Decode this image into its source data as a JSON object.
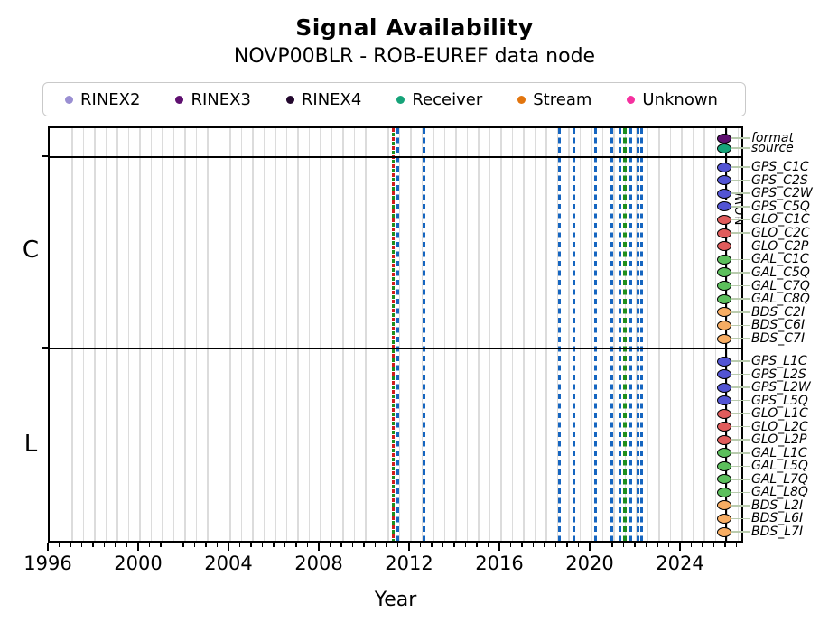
{
  "header": {
    "title": "Signal Availability",
    "subtitle": "NOVP00BLR - ROB-EUREF data node"
  },
  "legend": {
    "items": [
      {
        "label": "RINEX2",
        "color": "#9a8fd2"
      },
      {
        "label": "RINEX3",
        "color": "#5f1070"
      },
      {
        "label": "RINEX4",
        "color": "#23082e"
      },
      {
        "label": "Receiver",
        "color": "#16a379"
      },
      {
        "label": "Stream",
        "color": "#e2750e"
      },
      {
        "label": "Unknown",
        "color": "#f5309f"
      }
    ]
  },
  "axis": {
    "xlabel": "Year",
    "now_label": "NOW"
  },
  "section_labels": {
    "c": "C",
    "l": "L"
  },
  "chart_data": {
    "type": "scatter",
    "title": "Signal Availability",
    "subtitle": "NOVP00BLR - ROB-EUREF data node",
    "xlabel": "Year",
    "xlim": [
      1996,
      2026.8
    ],
    "x_major_ticks": [
      1996,
      2000,
      2004,
      2008,
      2012,
      2016,
      2020,
      2024
    ],
    "x_minor_tick_step": 0.5,
    "grid": "vertical gridlines every 0.5 year",
    "legend_position": "top",
    "now_year": 2025.96,
    "marker_colors": {
      "GPS": "#5254d3",
      "GLO": "#e05c5c",
      "GAL": "#5cbf5c",
      "BDS": "#f7ad63",
      "RINEX3": "#5f1070",
      "Receiver": "#16a379"
    },
    "event_colors": {
      "blue": "#1565c0",
      "green": "#1e8e1e",
      "red": "#d01c1c"
    },
    "event_lines": [
      {
        "year": 2011.2,
        "color": "red-green",
        "style": "dashed"
      },
      {
        "year": 2011.4,
        "color": "blue",
        "style": "dashed"
      },
      {
        "year": 2012.56,
        "color": "blue",
        "style": "dashed"
      },
      {
        "year": 2018.56,
        "color": "blue",
        "style": "dashed"
      },
      {
        "year": 2019.2,
        "color": "blue",
        "style": "dashed"
      },
      {
        "year": 2020.16,
        "color": "blue",
        "style": "dashed"
      },
      {
        "year": 2020.88,
        "color": "blue",
        "style": "dashed"
      },
      {
        "year": 2021.24,
        "color": "blue",
        "style": "dashed"
      },
      {
        "year": 2021.48,
        "color": "green",
        "style": "dashed",
        "thick": true
      },
      {
        "year": 2021.72,
        "color": "blue",
        "style": "dashed"
      },
      {
        "year": 2022.04,
        "color": "blue",
        "style": "dashed"
      },
      {
        "year": 2022.2,
        "color": "blue",
        "style": "dashed"
      }
    ],
    "sections": [
      {
        "name": "meta",
        "label": "",
        "rows": [
          {
            "label": "format",
            "category": "RINEX3",
            "marker_year": 2025.96
          },
          {
            "label": "source",
            "category": "Receiver",
            "marker_year": 2025.96
          }
        ]
      },
      {
        "name": "C",
        "label": "C",
        "rows": [
          {
            "label": "GPS_C1C",
            "category": "GPS",
            "marker_year": 2025.96
          },
          {
            "label": "GPS_C2S",
            "category": "GPS",
            "marker_year": 2025.96
          },
          {
            "label": "GPS_C2W",
            "category": "GPS",
            "marker_year": 2025.96
          },
          {
            "label": "GPS_C5Q",
            "category": "GPS",
            "marker_year": 2025.96
          },
          {
            "label": "GLO_C1C",
            "category": "GLO",
            "marker_year": 2025.96
          },
          {
            "label": "GLO_C2C",
            "category": "GLO",
            "marker_year": 2025.96
          },
          {
            "label": "GLO_C2P",
            "category": "GLO",
            "marker_year": 2025.96
          },
          {
            "label": "GAL_C1C",
            "category": "GAL",
            "marker_year": 2025.96
          },
          {
            "label": "GAL_C5Q",
            "category": "GAL",
            "marker_year": 2025.96
          },
          {
            "label": "GAL_C7Q",
            "category": "GAL",
            "marker_year": 2025.96
          },
          {
            "label": "GAL_C8Q",
            "category": "GAL",
            "marker_year": 2025.96
          },
          {
            "label": "BDS_C2I",
            "category": "BDS",
            "marker_year": 2025.96
          },
          {
            "label": "BDS_C6I",
            "category": "BDS",
            "marker_year": 2025.96
          },
          {
            "label": "BDS_C7I",
            "category": "BDS",
            "marker_year": 2025.96
          }
        ]
      },
      {
        "name": "L",
        "label": "L",
        "rows": [
          {
            "label": "GPS_L1C",
            "category": "GPS",
            "marker_year": 2025.96
          },
          {
            "label": "GPS_L2S",
            "category": "GPS",
            "marker_year": 2025.96
          },
          {
            "label": "GPS_L2W",
            "category": "GPS",
            "marker_year": 2025.96
          },
          {
            "label": "GPS_L5Q",
            "category": "GPS",
            "marker_year": 2025.96
          },
          {
            "label": "GLO_L1C",
            "category": "GLO",
            "marker_year": 2025.96
          },
          {
            "label": "GLO_L2C",
            "category": "GLO",
            "marker_year": 2025.96
          },
          {
            "label": "GLO_L2P",
            "category": "GLO",
            "marker_year": 2025.96
          },
          {
            "label": "GAL_L1C",
            "category": "GAL",
            "marker_year": 2025.96
          },
          {
            "label": "GAL_L5Q",
            "category": "GAL",
            "marker_year": 2025.96
          },
          {
            "label": "GAL_L7Q",
            "category": "GAL",
            "marker_year": 2025.96
          },
          {
            "label": "GAL_L8Q",
            "category": "GAL",
            "marker_year": 2025.96
          },
          {
            "label": "BDS_L2I",
            "category": "BDS",
            "marker_year": 2025.96
          },
          {
            "label": "BDS_L6I",
            "category": "BDS",
            "marker_year": 2025.96
          },
          {
            "label": "BDS_L7I",
            "category": "BDS",
            "marker_year": 2025.96
          }
        ]
      }
    ]
  }
}
